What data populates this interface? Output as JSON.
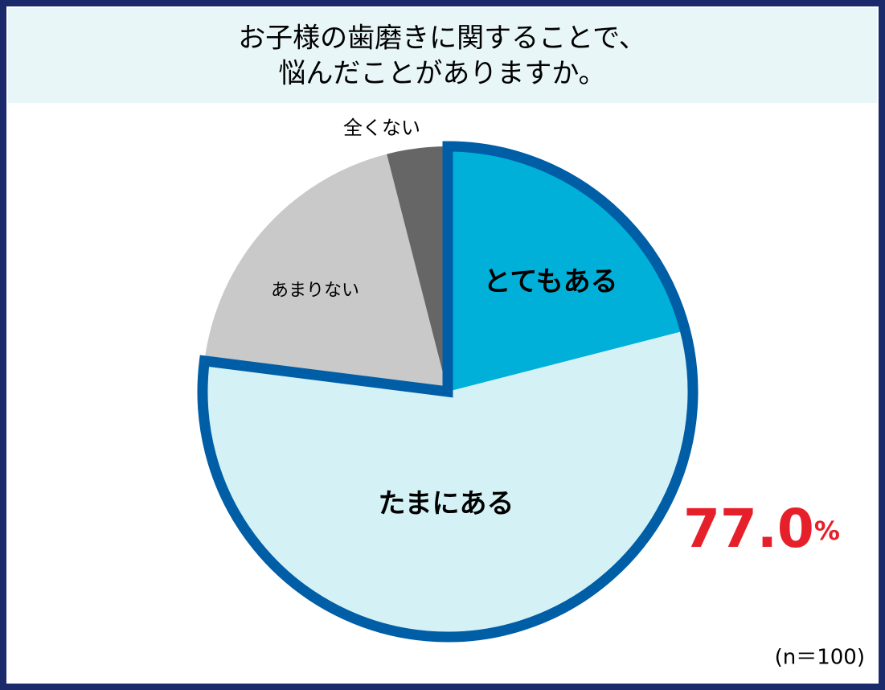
{
  "chart_data": {
    "type": "pie",
    "title": [
      "お子様の歯磨きに関することで、",
      "悩んだことがありますか。"
    ],
    "categories": [
      "とてもある",
      "たまにある",
      "あまりない",
      "全くない"
    ],
    "values": [
      21,
      56,
      19,
      4
    ],
    "colors": [
      "#00b0d8",
      "#d4f2f6",
      "#c9c9c9",
      "#666666"
    ],
    "highlight": {
      "value": "77.0",
      "unit": "%"
    },
    "note": "(n＝100)"
  }
}
